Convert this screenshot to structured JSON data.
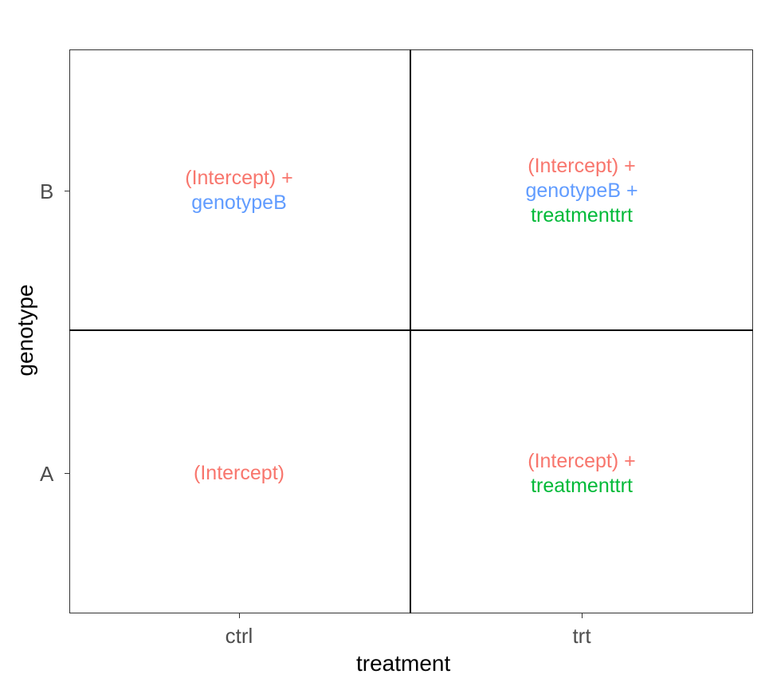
{
  "colors": {
    "intercept": "#F8766D",
    "genotype": "#619CFF",
    "treatment": "#00BA38"
  },
  "axes": {
    "x_title": "treatment",
    "y_title": "genotype",
    "x_ticks": [
      "ctrl",
      "trt"
    ],
    "y_ticks": [
      "B",
      "A"
    ]
  },
  "cells": {
    "ctrl_B": [
      "(Intercept) +",
      "genotypeB"
    ],
    "trt_B": [
      "(Intercept) +",
      "genotypeB +",
      "treatmenttrt"
    ],
    "ctrl_A": [
      "(Intercept)"
    ],
    "trt_A": [
      "(Intercept) +",
      "treatmenttrt"
    ]
  }
}
